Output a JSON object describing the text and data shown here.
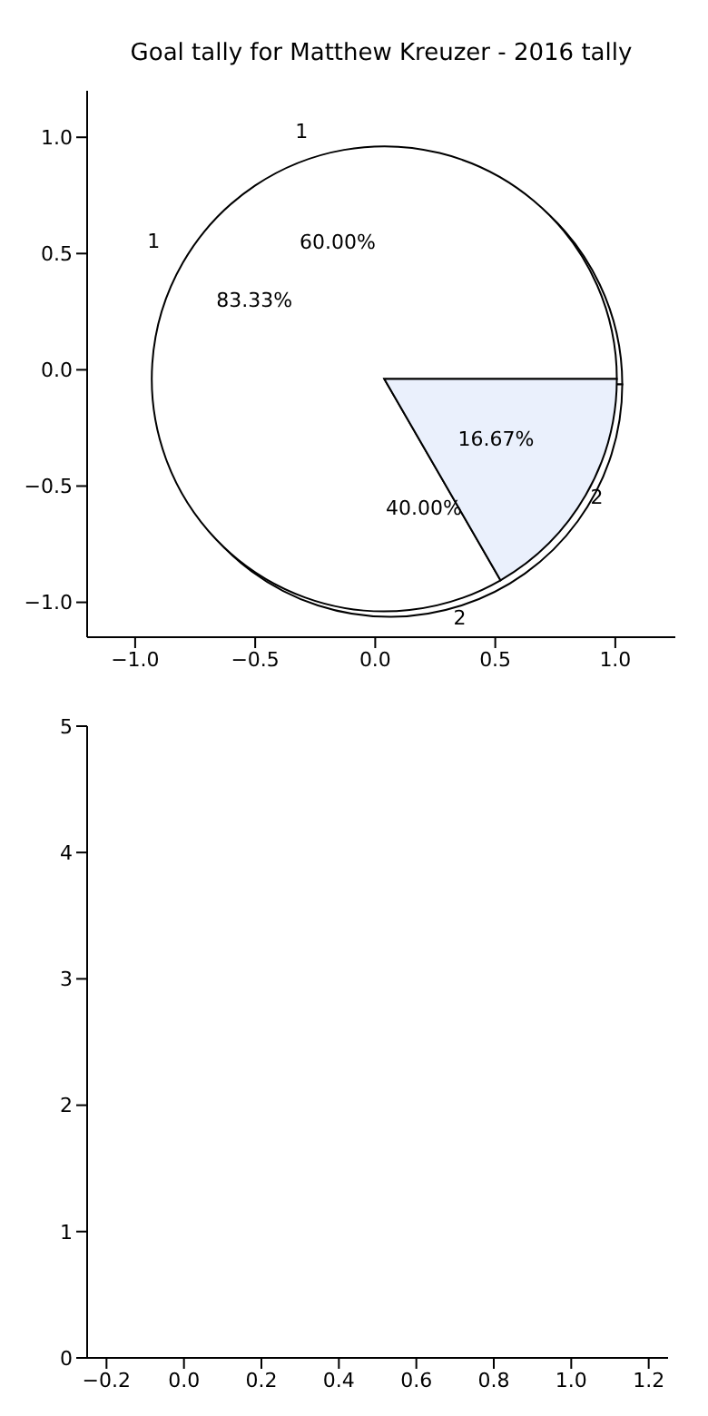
{
  "chart_data": [
    {
      "type": "scatter",
      "title": "Goal tally for Matthew Kreuzer - 2016 tally",
      "xlim": [
        -1.2,
        1.25
      ],
      "xticks": [
        {
          "value": -1,
          "label": "−1.0"
        },
        {
          "value": -0.5,
          "label": "−0.5"
        },
        {
          "value": 0,
          "label": "0.0"
        },
        {
          "value": 0.5,
          "label": "0.5"
        },
        {
          "value": 1,
          "label": "1.0"
        }
      ],
      "ylim": [
        -1.15,
        1.2
      ],
      "yticks": [
        {
          "value": -1,
          "label": "−1.0"
        },
        {
          "value": -0.5,
          "label": "−0.5"
        },
        {
          "value": 0,
          "label": "0.0"
        },
        {
          "value": 0.5,
          "label": "0.5"
        },
        {
          "value": 1,
          "label": "1.0"
        }
      ]
    },
    {
      "type": "pie",
      "categories": [
        "1",
        "2"
      ],
      "values": [
        60,
        40
      ],
      "colors": [
        "#ffffff",
        "#ffffff"
      ],
      "value_labels": [
        "60.00%",
        "40.00%"
      ]
    },
    {
      "type": "pie",
      "categories": [
        "1",
        "2"
      ],
      "values": [
        83.33,
        16.67
      ],
      "colors": [
        "#ffffff",
        "#eaf0fc"
      ],
      "value_labels": [
        "83.33%",
        "16.67%"
      ]
    },
    {
      "type": "scatter",
      "xlim": [
        -0.25,
        1.25
      ],
      "xticks": [
        {
          "value": -0.2,
          "label": "−0.2"
        },
        {
          "value": 0,
          "label": "0.0"
        },
        {
          "value": 0.2,
          "label": "0.2"
        },
        {
          "value": 0.4,
          "label": "0.4"
        },
        {
          "value": 0.6,
          "label": "0.6"
        },
        {
          "value": 0.8,
          "label": "0.8"
        },
        {
          "value": 1,
          "label": "1.0"
        },
        {
          "value": 1.2,
          "label": "1.2"
        }
      ],
      "ylim": [
        0,
        5
      ],
      "yticks": [
        0,
        1,
        2,
        3,
        4,
        5
      ]
    }
  ]
}
